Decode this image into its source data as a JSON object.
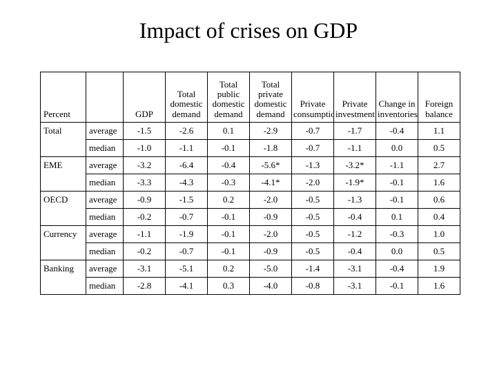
{
  "title": "Impact of crises on GDP",
  "background_color": "#ffffff",
  "text_color": "#000000",
  "border_color": "#000000",
  "title_fontsize": 32,
  "cell_fontsize": 13,
  "table": {
    "columns": [
      "Percent",
      "",
      "GDP",
      "Total domestic demand",
      "Total public domestic demand",
      "Total private domestic demand",
      "Private consumption",
      "Private investment",
      "Change in inventories",
      "Foreign balance"
    ],
    "groups": [
      "Total",
      "EME",
      "OECD",
      "Currency",
      "Banking"
    ],
    "stats": [
      "average",
      "median"
    ],
    "rows": [
      [
        "-1.5",
        "-2.6",
        "0.1",
        "-2.9",
        "-0.7",
        "-1.7",
        "-0.4",
        "1.1"
      ],
      [
        "-1.0",
        "-1.1",
        "-0.1",
        "-1.8",
        "-0.7",
        "-1.1",
        "0.0",
        "0.5"
      ],
      [
        "-3.2",
        "-6.4",
        "-0.4",
        "-5.6*",
        "-1.3",
        "-3.2*",
        "-1.1",
        "2.7"
      ],
      [
        "-3.3",
        "-4.3",
        "-0.3",
        "-4.1*",
        "-2.0",
        "-1.9*",
        "-0.1",
        "1.6"
      ],
      [
        "-0.9",
        "-1.5",
        "0.2",
        "-2.0",
        "-0.5",
        "-1.3",
        "-0.1",
        "0.6"
      ],
      [
        "-0.2",
        "-0.7",
        "-0.1",
        "-0.9",
        "-0.5",
        "-0.4",
        "0.1",
        "0.4"
      ],
      [
        "-1.1",
        "-1.9",
        "-0.1",
        "-2.0",
        "-0.5",
        "-1.2",
        "-0.3",
        "1.0"
      ],
      [
        "-0.2",
        "-0.7",
        "-0.1",
        "-0.9",
        "-0.5",
        "-0.4",
        "0.0",
        "0.5"
      ],
      [
        "-3.1",
        "-5.1",
        "0.2",
        "-5.0",
        "-1.4",
        "-3.1",
        "-0.4",
        "1.9"
      ],
      [
        "-2.8",
        "-4.1",
        "0.3",
        "-4.0",
        "-0.8",
        "-3.1",
        "-0.1",
        "1.6"
      ]
    ]
  }
}
